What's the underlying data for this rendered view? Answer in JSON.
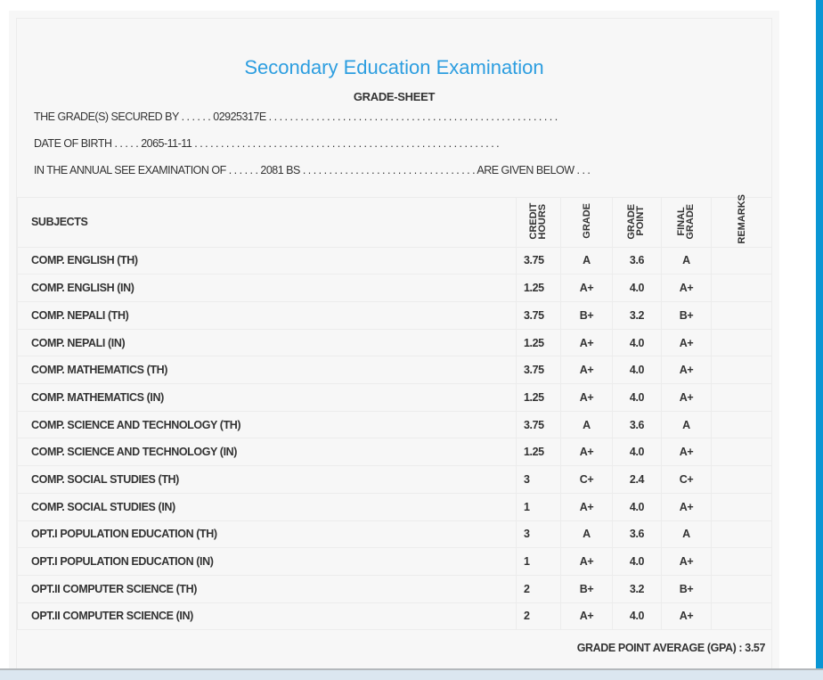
{
  "title": "Secondary Education Examination",
  "subtitle": "GRADE-SHEET",
  "info": {
    "secured_by": "THE GRADE(S) SECURED BY . . . . . . 02925317E . . . . . . . . . . . . . . . . . . . . . . . . . . . . . . . . . . . . . . . . . . . . . . . . . . . . . . .",
    "dob": "DATE OF BIRTH . . . . . 2065-11-11 . . . . . . . . . . . . . . . . . . . . . . . . . . . . . . . . . . . . . . . . . . . . . . . . . . . . . . . . . .",
    "exam": "IN THE ANNUAL SEE EXAMINATION OF . . . . . . 2081 BS . . . . . . . . . . . . . . . . . . . . . . . . . . . . . . . . . ARE GIVEN BELOW . . ."
  },
  "headers": {
    "subjects": "SUBJECTS",
    "credit": "CREDIT HOURS",
    "grade": "GRADE",
    "gp": "GRADE POINT",
    "final": "FINAL GRADE",
    "remarks": "REMARKS"
  },
  "rows": [
    {
      "s": "COMP. ENGLISH (TH)",
      "c": "3.75",
      "g": "A",
      "p": "3.6",
      "f": "A"
    },
    {
      "s": "COMP. ENGLISH (IN)",
      "c": "1.25",
      "g": "A+",
      "p": "4.0",
      "f": "A+"
    },
    {
      "s": "COMP. NEPALI (TH)",
      "c": "3.75",
      "g": "B+",
      "p": "3.2",
      "f": "B+"
    },
    {
      "s": "COMP. NEPALI (IN)",
      "c": "1.25",
      "g": "A+",
      "p": "4.0",
      "f": "A+"
    },
    {
      "s": "COMP. MATHEMATICS (TH)",
      "c": "3.75",
      "g": "A+",
      "p": "4.0",
      "f": "A+"
    },
    {
      "s": "COMP. MATHEMATICS (IN)",
      "c": "1.25",
      "g": "A+",
      "p": "4.0",
      "f": "A+"
    },
    {
      "s": "COMP. SCIENCE AND TECHNOLOGY (TH)",
      "c": "3.75",
      "g": "A",
      "p": "3.6",
      "f": "A"
    },
    {
      "s": "COMP. SCIENCE AND TECHNOLOGY (IN)",
      "c": "1.25",
      "g": "A+",
      "p": "4.0",
      "f": "A+"
    },
    {
      "s": "COMP. SOCIAL STUDIES (TH)",
      "c": "3",
      "g": "C+",
      "p": "2.4",
      "f": "C+"
    },
    {
      "s": "COMP. SOCIAL STUDIES (IN)",
      "c": "1",
      "g": "A+",
      "p": "4.0",
      "f": "A+"
    },
    {
      "s": "OPT.I POPULATION EDUCATION (TH)",
      "c": "3",
      "g": "A",
      "p": "3.6",
      "f": "A"
    },
    {
      "s": "OPT.I POPULATION EDUCATION (IN)",
      "c": "1",
      "g": "A+",
      "p": "4.0",
      "f": "A+"
    },
    {
      "s": "OPT.II COMPUTER SCIENCE (TH)",
      "c": "2",
      "g": "B+",
      "p": "3.2",
      "f": "B+"
    },
    {
      "s": "OPT.II COMPUTER SCIENCE (IN)",
      "c": "2",
      "g": "A+",
      "p": "4.0",
      "f": "A+"
    }
  ],
  "gpa": "GRADE POINT AVERAGE (GPA) : 3.57"
}
